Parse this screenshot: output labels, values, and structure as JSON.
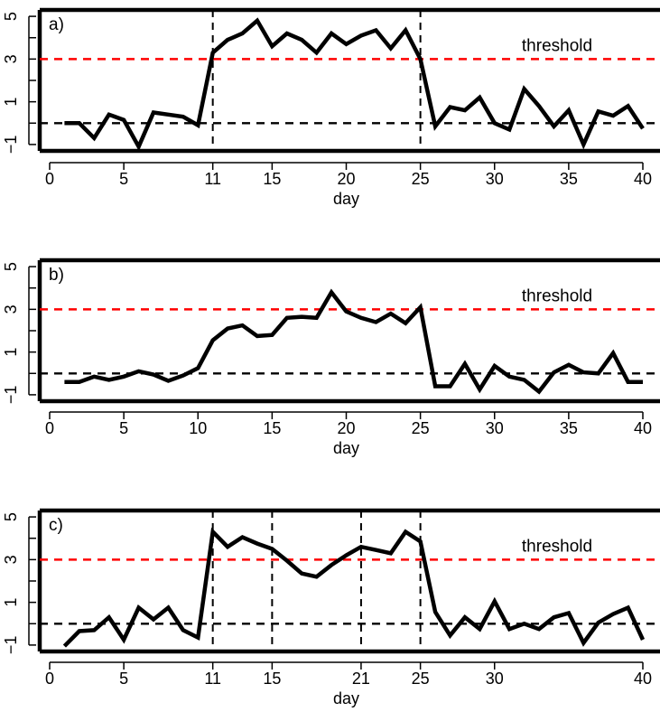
{
  "chart_data": [
    {
      "type": "line",
      "panel_label": "a)",
      "xlabel": "day",
      "ylabel": "",
      "xlim": [
        1,
        40
      ],
      "ylim": [
        -1.3,
        5.3
      ],
      "xticks": [
        0,
        5,
        11,
        15,
        20,
        25,
        30,
        35,
        40
      ],
      "yticks": [
        -1,
        1,
        3,
        5
      ],
      "ytick_labels": [
        "−1",
        "1",
        "3",
        "5"
      ],
      "vlines": [
        11,
        25
      ],
      "hlines": [
        {
          "y": 0,
          "color": "#000000",
          "style": "dashed"
        },
        {
          "y": 3,
          "color": "#ff0000",
          "style": "dashed"
        }
      ],
      "threshold_text": "threshold",
      "line_color": "#000000",
      "x": [
        1,
        2,
        3,
        4,
        5,
        6,
        7,
        8,
        9,
        10,
        11,
        12,
        13,
        14,
        15,
        16,
        17,
        18,
        19,
        20,
        21,
        22,
        23,
        24,
        25,
        26,
        27,
        28,
        29,
        30,
        31,
        32,
        33,
        34,
        35,
        36,
        37,
        38,
        39,
        40
      ],
      "y": [
        0.0,
        0.0,
        -0.7,
        0.4,
        0.15,
        -1.1,
        0.5,
        0.4,
        0.3,
        -0.1,
        3.3,
        3.9,
        4.2,
        4.8,
        3.6,
        4.2,
        3.9,
        3.3,
        4.2,
        3.7,
        4.1,
        4.35,
        3.5,
        4.35,
        3.0,
        -0.15,
        0.75,
        0.6,
        1.2,
        0.0,
        -0.3,
        1.6,
        0.8,
        -0.15,
        0.6,
        -1.0,
        0.55,
        0.35,
        0.8,
        -0.25
      ]
    },
    {
      "type": "line",
      "panel_label": "b)",
      "xlabel": "day",
      "ylabel": "",
      "xlim": [
        1,
        40
      ],
      "ylim": [
        -1.3,
        5.3
      ],
      "xticks": [
        0,
        5,
        10,
        15,
        20,
        25,
        30,
        35,
        40
      ],
      "yticks": [
        -1,
        1,
        3,
        5
      ],
      "ytick_labels": [
        "−1",
        "1",
        "3",
        "5"
      ],
      "vlines": [],
      "hlines": [
        {
          "y": 0,
          "color": "#000000",
          "style": "dashed"
        },
        {
          "y": 3,
          "color": "#ff0000",
          "style": "dashed"
        }
      ],
      "threshold_text": "threshold",
      "line_color": "#000000",
      "x": [
        1,
        2,
        3,
        4,
        5,
        6,
        7,
        8,
        9,
        10,
        11,
        12,
        13,
        14,
        15,
        16,
        17,
        18,
        19,
        20,
        21,
        22,
        23,
        24,
        25,
        26,
        27,
        28,
        29,
        30,
        31,
        32,
        33,
        34,
        35,
        36,
        37,
        38,
        39,
        40
      ],
      "y": [
        -0.4,
        -0.4,
        -0.15,
        -0.3,
        -0.15,
        0.1,
        -0.05,
        -0.35,
        -0.1,
        0.25,
        1.55,
        2.1,
        2.25,
        1.75,
        1.8,
        2.6,
        2.65,
        2.6,
        3.8,
        2.9,
        2.6,
        2.4,
        2.8,
        2.35,
        3.1,
        -0.6,
        -0.6,
        0.45,
        -0.75,
        0.35,
        -0.15,
        -0.3,
        -0.85,
        0.05,
        0.4,
        0.05,
        0.0,
        0.95,
        -0.4,
        -0.4
      ]
    },
    {
      "type": "line",
      "panel_label": "c)",
      "xlabel": "day",
      "ylabel": "",
      "xlim": [
        1,
        40
      ],
      "ylim": [
        -1.3,
        5.3
      ],
      "xticks": [
        0,
        5,
        11,
        15,
        21,
        25,
        30,
        40
      ],
      "yticks": [
        -1,
        1,
        3,
        5
      ],
      "ytick_labels": [
        "−1",
        "1",
        "3",
        "5"
      ],
      "vlines": [
        11,
        15,
        21,
        25
      ],
      "hlines": [
        {
          "y": 0,
          "color": "#000000",
          "style": "dashed"
        },
        {
          "y": 3,
          "color": "#ff0000",
          "style": "dashed"
        }
      ],
      "threshold_text": "threshold",
      "line_color": "#000000",
      "x": [
        1,
        2,
        3,
        4,
        5,
        6,
        7,
        8,
        9,
        10,
        11,
        12,
        13,
        14,
        15,
        16,
        17,
        18,
        19,
        20,
        21,
        22,
        23,
        24,
        25,
        26,
        27,
        28,
        29,
        30,
        31,
        32,
        33,
        34,
        35,
        36,
        37,
        38,
        39,
        40
      ],
      "y": [
        -1.05,
        -0.35,
        -0.3,
        0.3,
        -0.75,
        0.75,
        0.2,
        0.75,
        -0.3,
        -0.65,
        4.3,
        3.6,
        4.05,
        3.75,
        3.5,
        2.95,
        2.35,
        2.2,
        2.75,
        3.2,
        3.6,
        3.45,
        3.3,
        4.3,
        3.85,
        0.55,
        -0.55,
        0.3,
        -0.25,
        1.05,
        -0.25,
        0.0,
        -0.25,
        0.3,
        0.5,
        -0.9,
        0.05,
        0.45,
        0.75,
        -0.75
      ]
    }
  ]
}
